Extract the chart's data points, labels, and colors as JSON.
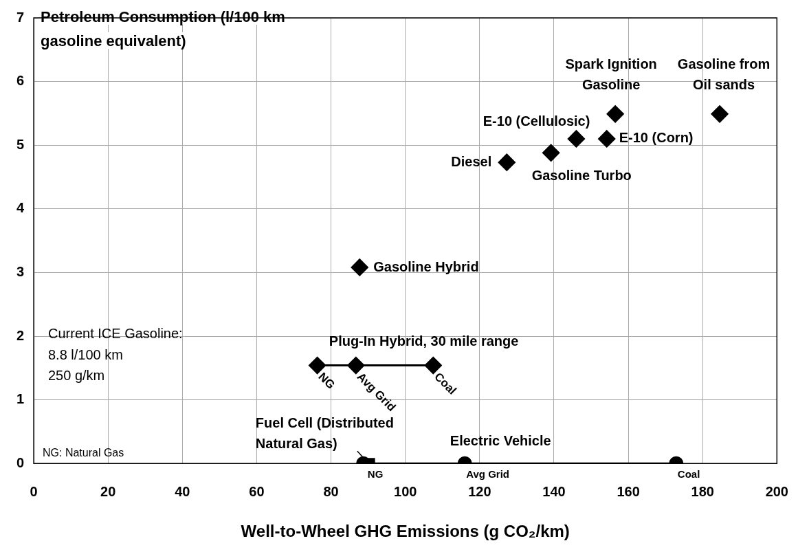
{
  "chart_data": {
    "type": "scatter",
    "xlabel": "Well-to-Wheel GHG Emissions (g CO₂/km)",
    "ylabel": "Petroleum Consumption (l/100 km gasoline equivalent)",
    "xlim": [
      0,
      200
    ],
    "xticks": [
      0,
      20,
      40,
      60,
      80,
      100,
      120,
      140,
      160,
      180,
      200
    ],
    "ylim": [
      0,
      7
    ],
    "yticks": [
      0,
      1,
      2,
      3,
      4,
      5,
      6,
      7
    ],
    "grid": true,
    "legend": false,
    "marker": "diamond",
    "series": [
      {
        "name": "Diesel",
        "color": "#000000",
        "x": [
          127.3
        ],
        "values": [
          4.73
        ]
      },
      {
        "name": "Gasoline Turbo",
        "color": "#000000",
        "x": [
          139.2
        ],
        "values": [
          4.88
        ]
      },
      {
        "name": "E-10 (Cellulosic)",
        "color": "#000000",
        "x": [
          146
        ],
        "values": [
          5.1
        ]
      },
      {
        "name": "E-10 (Corn)",
        "color": "#000000",
        "x": [
          154.2
        ],
        "values": [
          5.1
        ]
      },
      {
        "name": "Spark Ignition Gasoline",
        "color": "#000000",
        "x": [
          156.5
        ],
        "values": [
          5.49
        ]
      },
      {
        "name": "Gasoline from Oil sands",
        "color": "#000000",
        "x": [
          184.6
        ],
        "values": [
          5.49
        ]
      },
      {
        "name": "Gasoline Hybrid",
        "color": "#000000",
        "x": [
          87.7
        ],
        "values": [
          3.08
        ]
      },
      {
        "name": "Plug-In Hybrid, 30 mile range",
        "type": "line",
        "color": "#000000",
        "x": [
          76.3,
          86.7,
          107.5
        ],
        "values": [
          1.54,
          1.54,
          1.54
        ]
      },
      {
        "name": "Electric Vehicle",
        "type": "line",
        "marker": "circle",
        "color": "#000000",
        "x": [
          88.7,
          116,
          172.9
        ],
        "values": [
          0,
          0,
          0
        ]
      },
      {
        "name": "Fuel Cell (Distributed Natural Gas)",
        "marker": "square",
        "color": "#000000",
        "x": [
          90.4
        ],
        "values": [
          0
        ]
      }
    ],
    "annotations": [
      "Current ICE Gasoline:",
      "8.8 l/100 km",
      "250 g/km",
      "NG: Natural Gas",
      {
        "text": "NG",
        "x": 76.3,
        "y": 1.54
      },
      {
        "text": "Avg Grid",
        "x": 86.7,
        "y": 1.54
      },
      {
        "text": "Coal",
        "x": 107.5,
        "y": 1.54
      },
      {
        "text": "NG",
        "x": 90.4,
        "y": 0
      },
      {
        "text": "Avg Grid",
        "x": 116,
        "y": 0
      },
      {
        "text": "Coal",
        "x": 172.9,
        "y": 0
      }
    ]
  }
}
